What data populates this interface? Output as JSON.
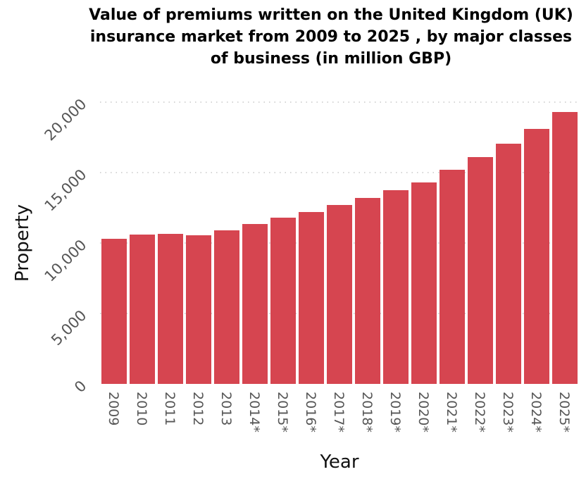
{
  "chart_data": {
    "type": "bar",
    "title": "Value of premiums written on the United Kingdom (UK) insurance market from 2009 to 2025 , by major classes of business (in million GBP)",
    "xlabel": "Year",
    "ylabel": "Property",
    "categories": [
      "2009",
      "2010",
      "2011",
      "2012",
      "2013",
      "2014*",
      "2015*",
      "2016*",
      "2017*",
      "2018*",
      "2019*",
      "2020*",
      "2021*",
      "2022*",
      "2023*",
      "2024*",
      "2025*"
    ],
    "values": [
      10300,
      10600,
      10650,
      10550,
      10900,
      11350,
      11800,
      12200,
      12700,
      13200,
      13750,
      14300,
      15200,
      16100,
      17050,
      18100,
      19300
    ],
    "yticks": [
      0,
      5000,
      10000,
      15000,
      20000
    ],
    "ytick_labels": [
      "0",
      "5,000",
      "10,000",
      "15,000",
      "20,000"
    ],
    "ylim": [
      0,
      20000
    ],
    "grid": "horizontal dotted",
    "legend": "none",
    "bar_color": "#d64550",
    "grid_color": "#c8c8c8",
    "tick_label_color": "#555555"
  }
}
